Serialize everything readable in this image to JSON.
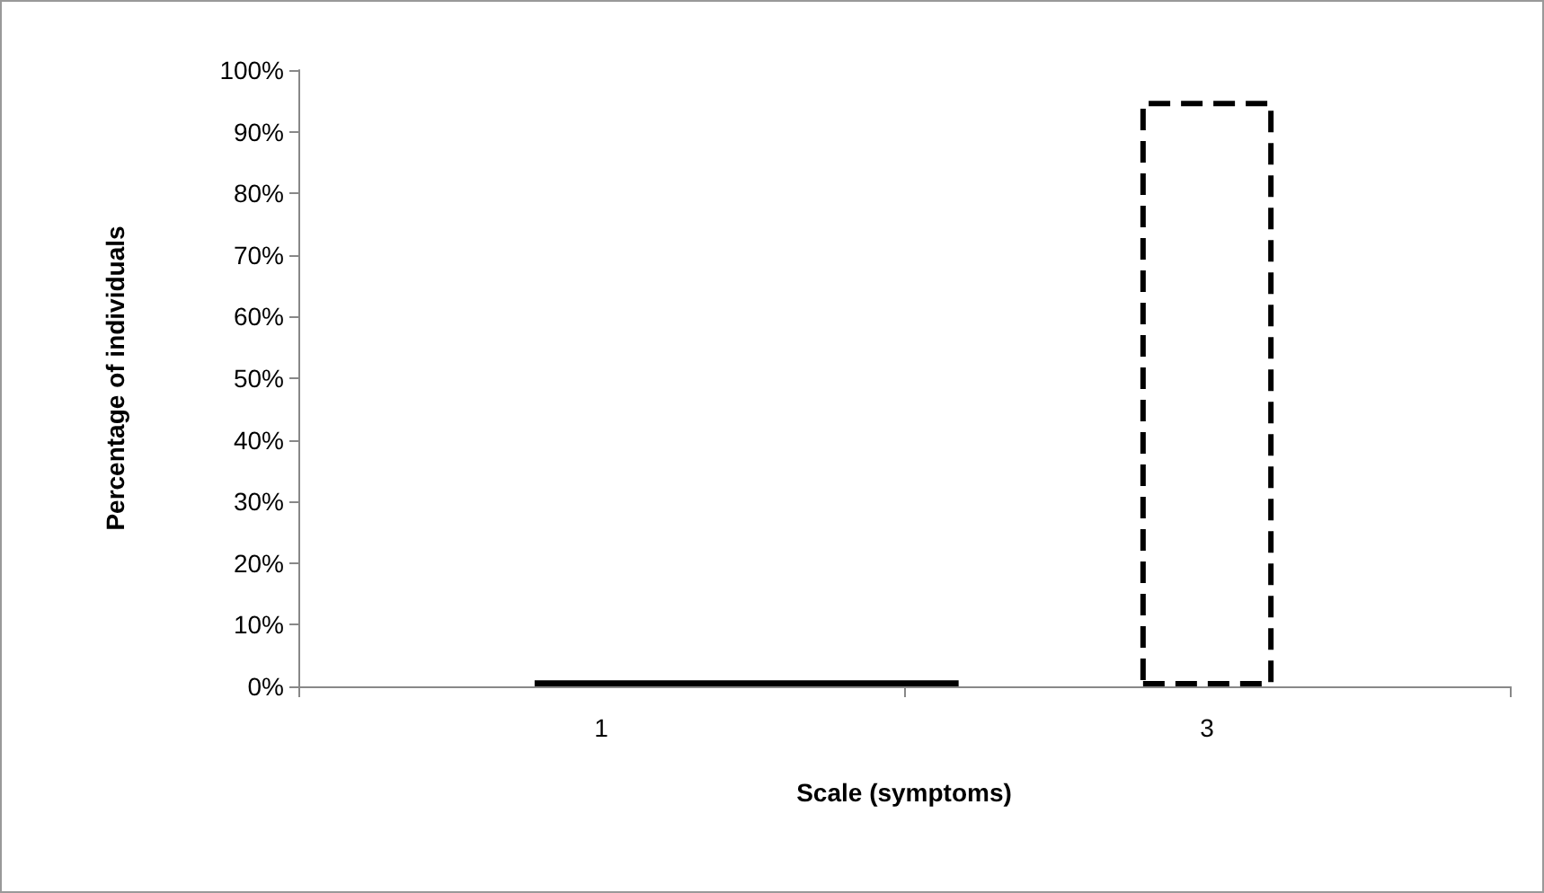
{
  "chart_data": {
    "type": "bar",
    "xlabel": "Scale (symptoms)",
    "ylabel": "Percentage of individuals",
    "categories": [
      "1",
      "3"
    ],
    "series": [
      {
        "color": "#000000",
        "values": [
          1,
          null
        ],
        "line_style": "solid"
      },
      {
        "color": "#ffffff",
        "values": [
          null,
          95
        ],
        "line_style": "dashed"
      }
    ],
    "ylim": [
      0,
      100
    ],
    "yticks": [
      {
        "value": 0,
        "label": "0%"
      },
      {
        "value": 10,
        "label": "10%"
      },
      {
        "value": 20,
        "label": "20%"
      },
      {
        "value": 30,
        "label": "30%"
      },
      {
        "value": 40,
        "label": "40%"
      },
      {
        "value": 50,
        "label": "50%"
      },
      {
        "value": 60,
        "label": "60%"
      },
      {
        "value": 70,
        "label": "70%"
      },
      {
        "value": 80,
        "label": "80%"
      },
      {
        "value": 90,
        "label": "90%"
      },
      {
        "value": 100,
        "label": "100%"
      }
    ],
    "grid": false
  }
}
